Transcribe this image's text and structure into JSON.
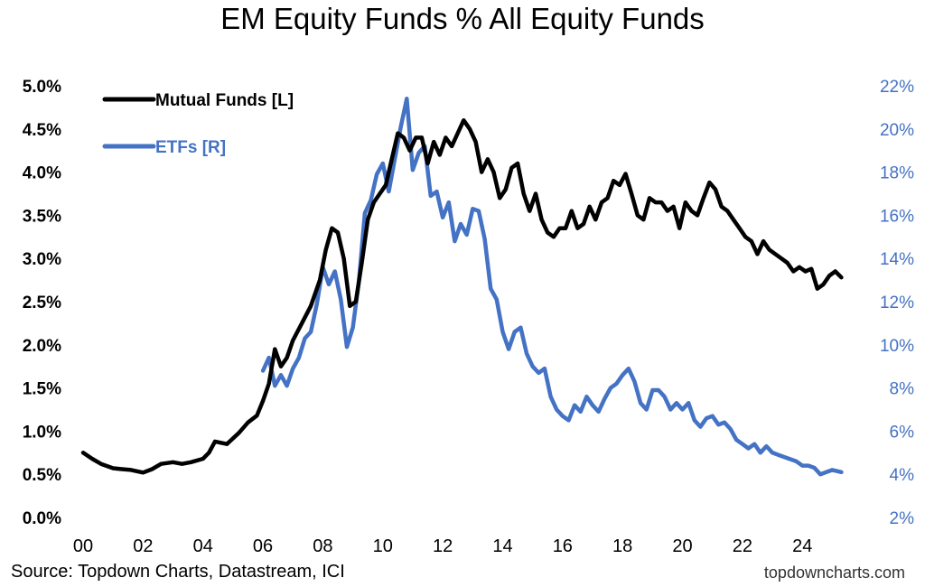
{
  "chart_data": {
    "type": "line",
    "title": "EM Equity Funds % All Equity Funds",
    "x_axis": {
      "min": 0,
      "max": 25.5,
      "ticks": [
        0,
        2,
        4,
        6,
        8,
        10,
        12,
        14,
        16,
        18,
        20,
        22,
        24
      ],
      "tick_labels": [
        "00",
        "02",
        "04",
        "06",
        "08",
        "10",
        "12",
        "14",
        "16",
        "18",
        "20",
        "22",
        "24"
      ]
    },
    "y_left": {
      "min": 0.0,
      "max": 5.0,
      "unit": "%",
      "ticks": [
        0.0,
        0.5,
        1.0,
        1.5,
        2.0,
        2.5,
        3.0,
        3.5,
        4.0,
        4.5,
        5.0
      ],
      "tick_labels": [
        "0.0%",
        "0.5%",
        "1.0%",
        "1.5%",
        "2.0%",
        "2.5%",
        "3.0%",
        "3.5%",
        "4.0%",
        "4.5%",
        "5.0%"
      ]
    },
    "y_right": {
      "min": 2,
      "max": 22,
      "unit": "%",
      "ticks": [
        2,
        4,
        6,
        8,
        10,
        12,
        14,
        16,
        18,
        20,
        22
      ],
      "tick_labels": [
        "2%",
        "4%",
        "6%",
        "8%",
        "10%",
        "12%",
        "14%",
        "16%",
        "18%",
        "20%",
        "22%"
      ]
    },
    "legend_position": "top-left",
    "grid": false,
    "series": [
      {
        "name": "Mutual Funds [L]",
        "axis": "left",
        "color": "#000000",
        "x": [
          0.0,
          0.3,
          0.6,
          1.0,
          1.3,
          1.6,
          2.0,
          2.3,
          2.6,
          3.0,
          3.3,
          3.6,
          4.0,
          4.2,
          4.4,
          4.8,
          5.2,
          5.5,
          5.8,
          6.0,
          6.2,
          6.4,
          6.6,
          6.8,
          7.0,
          7.3,
          7.6,
          7.9,
          8.1,
          8.3,
          8.5,
          8.7,
          8.9,
          9.1,
          9.3,
          9.5,
          9.7,
          9.9,
          10.1,
          10.3,
          10.5,
          10.7,
          10.9,
          11.1,
          11.3,
          11.5,
          11.7,
          11.9,
          12.1,
          12.3,
          12.5,
          12.7,
          12.9,
          13.1,
          13.3,
          13.5,
          13.7,
          13.9,
          14.1,
          14.3,
          14.5,
          14.7,
          14.9,
          15.1,
          15.3,
          15.5,
          15.7,
          15.9,
          16.1,
          16.3,
          16.5,
          16.7,
          16.9,
          17.1,
          17.3,
          17.5,
          17.7,
          17.9,
          18.1,
          18.3,
          18.5,
          18.7,
          18.9,
          19.1,
          19.3,
          19.5,
          19.7,
          19.9,
          20.1,
          20.3,
          20.5,
          20.7,
          20.9,
          21.1,
          21.3,
          21.5,
          21.7,
          21.9,
          22.1,
          22.3,
          22.5,
          22.7,
          22.9,
          23.1,
          23.3,
          23.5,
          23.7,
          23.9,
          24.1,
          24.3,
          24.5,
          24.7,
          24.9,
          25.1,
          25.3
        ],
        "y": [
          0.75,
          0.68,
          0.62,
          0.57,
          0.56,
          0.55,
          0.52,
          0.56,
          0.62,
          0.64,
          0.62,
          0.64,
          0.68,
          0.75,
          0.88,
          0.85,
          0.98,
          1.1,
          1.18,
          1.35,
          1.55,
          1.95,
          1.75,
          1.85,
          2.05,
          2.25,
          2.45,
          2.75,
          3.1,
          3.35,
          3.3,
          3.0,
          2.45,
          2.5,
          2.95,
          3.45,
          3.65,
          3.75,
          3.85,
          4.15,
          4.45,
          4.4,
          4.25,
          4.4,
          4.4,
          4.1,
          4.35,
          4.2,
          4.4,
          4.3,
          4.45,
          4.6,
          4.5,
          4.35,
          4.0,
          4.15,
          4.0,
          3.7,
          3.8,
          4.05,
          4.1,
          3.75,
          3.55,
          3.75,
          3.45,
          3.3,
          3.25,
          3.35,
          3.35,
          3.55,
          3.35,
          3.4,
          3.6,
          3.45,
          3.65,
          3.7,
          3.9,
          3.85,
          3.98,
          3.75,
          3.5,
          3.45,
          3.7,
          3.65,
          3.65,
          3.55,
          3.6,
          3.35,
          3.65,
          3.55,
          3.5,
          3.7,
          3.88,
          3.8,
          3.6,
          3.55,
          3.45,
          3.35,
          3.25,
          3.2,
          3.05,
          3.2,
          3.1,
          3.05,
          3.0,
          2.95,
          2.85,
          2.9,
          2.85,
          2.88,
          2.65,
          2.7,
          2.8,
          2.85,
          2.78
        ]
      },
      {
        "name": "ETFs [R]",
        "axis": "right",
        "color": "#4472C4",
        "x": [
          6.0,
          6.2,
          6.4,
          6.6,
          6.8,
          7.0,
          7.2,
          7.4,
          7.6,
          7.8,
          8.0,
          8.2,
          8.4,
          8.6,
          8.8,
          9.0,
          9.2,
          9.4,
          9.6,
          9.8,
          10.0,
          10.2,
          10.4,
          10.6,
          10.8,
          11.0,
          11.2,
          11.4,
          11.6,
          11.8,
          12.0,
          12.2,
          12.4,
          12.6,
          12.8,
          13.0,
          13.2,
          13.4,
          13.6,
          13.8,
          14.0,
          14.2,
          14.4,
          14.6,
          14.8,
          15.0,
          15.2,
          15.4,
          15.6,
          15.8,
          16.0,
          16.2,
          16.4,
          16.6,
          16.8,
          17.0,
          17.2,
          17.4,
          17.6,
          17.8,
          18.0,
          18.2,
          18.4,
          18.6,
          18.8,
          19.0,
          19.2,
          19.4,
          19.6,
          19.8,
          20.0,
          20.2,
          20.4,
          20.6,
          20.8,
          21.0,
          21.2,
          21.4,
          21.6,
          21.8,
          22.0,
          22.2,
          22.4,
          22.6,
          22.8,
          23.0,
          23.2,
          23.4,
          23.6,
          23.8,
          24.0,
          24.2,
          24.4,
          24.6,
          24.8,
          25.0,
          25.3
        ],
        "y": [
          8.8,
          9.4,
          8.1,
          8.6,
          8.1,
          8.9,
          9.4,
          10.3,
          10.6,
          11.9,
          13.6,
          12.8,
          13.4,
          12.1,
          9.9,
          10.8,
          12.9,
          16.1,
          16.7,
          17.9,
          18.4,
          17.1,
          18.6,
          20.1,
          21.4,
          18.1,
          18.9,
          19.2,
          16.9,
          17.1,
          15.9,
          16.6,
          14.8,
          15.6,
          15.1,
          16.3,
          16.2,
          14.9,
          12.6,
          12.1,
          10.6,
          9.8,
          10.6,
          10.8,
          9.6,
          9.0,
          8.7,
          8.9,
          7.6,
          7.0,
          6.7,
          6.5,
          7.2,
          6.9,
          7.6,
          7.2,
          6.9,
          7.5,
          8.0,
          8.2,
          8.6,
          8.9,
          8.3,
          7.3,
          7.0,
          7.9,
          7.9,
          7.6,
          7.0,
          7.3,
          7.0,
          7.3,
          6.5,
          6.2,
          6.6,
          6.7,
          6.3,
          6.4,
          6.1,
          5.6,
          5.4,
          5.2,
          5.4,
          5.0,
          5.3,
          5.0,
          4.9,
          4.8,
          4.7,
          4.6,
          4.4,
          4.4,
          4.3,
          4.0,
          4.1,
          4.2,
          4.1
        ]
      }
    ],
    "legend": [
      {
        "label": "Mutual Funds [L]",
        "color": "#000000"
      },
      {
        "label": "ETFs [R]",
        "color": "#4472C4"
      }
    ]
  },
  "footer": {
    "source": "Source: Topdown Charts, Datastream, ICI",
    "watermark": "topdowncharts.com"
  }
}
